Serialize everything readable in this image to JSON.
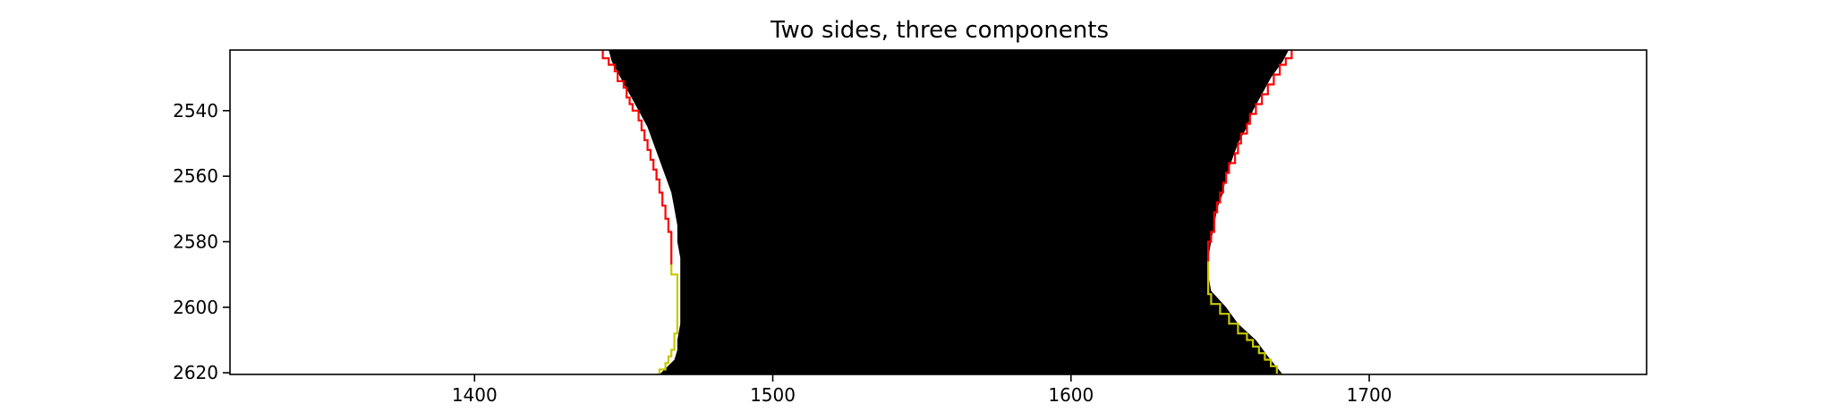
{
  "chart_data": {
    "type": "line",
    "title": "Two sides, three components",
    "xlabel": "",
    "ylabel": "",
    "xlim": [
      1318,
      1793
    ],
    "ylim": [
      2620.5,
      2521.5
    ],
    "y_inverted": true,
    "x_ticks": [
      1400,
      1500,
      1600,
      1700
    ],
    "y_ticks": [
      2540,
      2560,
      2580,
      2600,
      2620
    ],
    "grid": false,
    "legend": "none",
    "background_image": {
      "description_color_map": "binary mask",
      "fill_color": "#000000",
      "region_left_boundary": [
        [
          2521.5,
          1445
        ],
        [
          2525,
          1446
        ],
        [
          2530,
          1449
        ],
        [
          2535,
          1452
        ],
        [
          2540,
          1455
        ],
        [
          2545,
          1458
        ],
        [
          2550,
          1460
        ],
        [
          2555,
          1462
        ],
        [
          2560,
          1464
        ],
        [
          2565,
          1466
        ],
        [
          2570,
          1467
        ],
        [
          2575,
          1468
        ],
        [
          2580,
          1468
        ],
        [
          2585,
          1469
        ],
        [
          2590,
          1469
        ],
        [
          2595,
          1469
        ],
        [
          2600,
          1469
        ],
        [
          2605,
          1469
        ],
        [
          2610,
          1468
        ],
        [
          2613,
          1468
        ],
        [
          2616,
          1467
        ],
        [
          2620.5,
          1462
        ]
      ],
      "region_right_boundary": [
        [
          2521.5,
          1673
        ],
        [
          2525,
          1671
        ],
        [
          2530,
          1667
        ],
        [
          2535,
          1664
        ],
        [
          2540,
          1661
        ],
        [
          2545,
          1659
        ],
        [
          2550,
          1656
        ],
        [
          2555,
          1654
        ],
        [
          2560,
          1652
        ],
        [
          2565,
          1651
        ],
        [
          2570,
          1649
        ],
        [
          2575,
          1648
        ],
        [
          2580,
          1647
        ],
        [
          2585,
          1646
        ],
        [
          2590,
          1646
        ],
        [
          2595,
          1647
        ],
        [
          2600,
          1652
        ],
        [
          2605,
          1656
        ],
        [
          2610,
          1662
        ],
        [
          2615,
          1666
        ],
        [
          2620.5,
          1671
        ]
      ]
    },
    "series": [
      {
        "color": "#ff0000",
        "points": [
          [
            1443,
            2521.5
          ],
          [
            1445,
            2524
          ],
          [
            1447,
            2526
          ],
          [
            1448,
            2528
          ],
          [
            1450,
            2531
          ],
          [
            1451,
            2533
          ],
          [
            1452,
            2536
          ],
          [
            1453,
            2538
          ],
          [
            1455,
            2540
          ],
          [
            1456,
            2543
          ],
          [
            1457,
            2546
          ],
          [
            1458,
            2549
          ],
          [
            1459,
            2552
          ],
          [
            1460,
            2555
          ],
          [
            1461,
            2558
          ],
          [
            1462,
            2561
          ],
          [
            1463,
            2565
          ],
          [
            1464,
            2569
          ],
          [
            1465,
            2573
          ],
          [
            1466,
            2577
          ],
          [
            1466,
            2581
          ],
          [
            1466,
            2585
          ],
          [
            1466,
            2587
          ]
        ]
      },
      {
        "color": "#ff0000",
        "points": [
          [
            1674,
            2521.5
          ],
          [
            1672,
            2524
          ],
          [
            1670,
            2526
          ],
          [
            1668,
            2529
          ],
          [
            1666,
            2532
          ],
          [
            1664,
            2535
          ],
          [
            1662,
            2538
          ],
          [
            1660,
            2541
          ],
          [
            1659,
            2544
          ],
          [
            1657,
            2547
          ],
          [
            1656,
            2550
          ],
          [
            1655,
            2553
          ],
          [
            1653,
            2556
          ],
          [
            1652,
            2559
          ],
          [
            1651,
            2562
          ],
          [
            1650,
            2565
          ],
          [
            1649,
            2568
          ],
          [
            1648,
            2571
          ],
          [
            1648,
            2574
          ],
          [
            1647,
            2577
          ],
          [
            1646,
            2580
          ],
          [
            1646,
            2583
          ],
          [
            1646,
            2586
          ]
        ]
      },
      {
        "color": "#c8c800",
        "points": [
          [
            1466,
            2587
          ],
          [
            1466,
            2590
          ],
          [
            1468,
            2590
          ],
          [
            1468,
            2595
          ],
          [
            1468,
            2600
          ],
          [
            1468,
            2605
          ],
          [
            1468,
            2608
          ],
          [
            1467,
            2608
          ],
          [
            1467,
            2612
          ],
          [
            1466,
            2613
          ],
          [
            1465,
            2615
          ],
          [
            1464,
            2617
          ],
          [
            1462,
            2619
          ],
          [
            1461,
            2620.5
          ]
        ]
      },
      {
        "color": "#c8c800",
        "points": [
          [
            1646,
            2586
          ],
          [
            1646,
            2590
          ],
          [
            1646,
            2594
          ],
          [
            1647,
            2596
          ],
          [
            1650,
            2599
          ],
          [
            1653,
            2602
          ],
          [
            1656,
            2605
          ],
          [
            1659,
            2608
          ],
          [
            1661,
            2610
          ],
          [
            1663,
            2612
          ],
          [
            1665,
            2614
          ],
          [
            1667,
            2616
          ],
          [
            1669,
            2618
          ],
          [
            1671,
            2620.5
          ]
        ]
      }
    ]
  }
}
